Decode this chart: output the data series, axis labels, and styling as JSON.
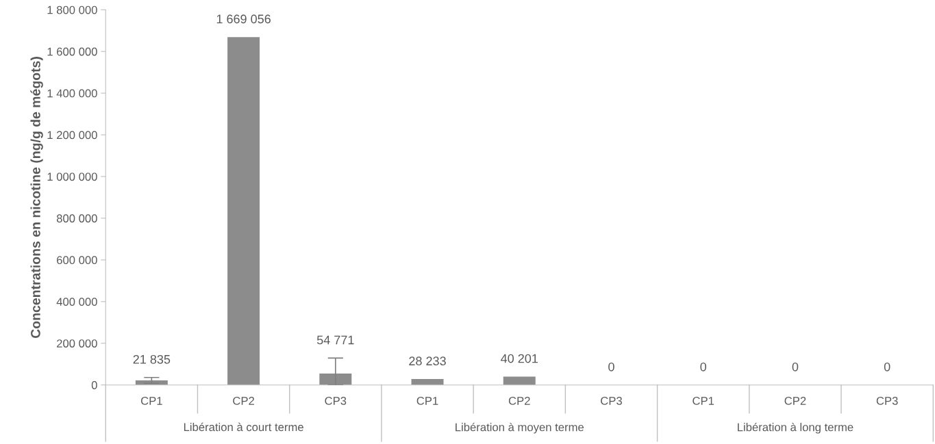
{
  "chart_data": {
    "type": "bar",
    "ylabel": "Concentrations en nicotine (ng/g de mégots)",
    "categories": [
      "CP1",
      "CP2",
      "CP3",
      "CP1",
      "CP2",
      "CP3",
      "CP1",
      "CP2",
      "CP3"
    ],
    "values": [
      21835,
      1669056,
      54771,
      28233,
      40201,
      0,
      0,
      0,
      0
    ],
    "errors": [
      [
        8000,
        36000
      ],
      null,
      [
        0,
        129000
      ],
      null,
      null,
      null,
      null,
      null,
      null
    ],
    "color": "#8c8c8c",
    "value_labels": [
      "21 835",
      "1 669 056",
      "54 771",
      "28 233",
      "40 201",
      "0",
      "0",
      "0",
      "0"
    ],
    "ylim": [
      0,
      1800000
    ],
    "yticks": [
      {
        "value": 0,
        "label": "0"
      },
      {
        "value": 200000,
        "label": "200 000"
      },
      {
        "value": 400000,
        "label": "400 000"
      },
      {
        "value": 600000,
        "label": "600 000"
      },
      {
        "value": 800000,
        "label": "800 000"
      },
      {
        "value": 1000000,
        "label": "1 000 000"
      },
      {
        "value": 1200000,
        "label": "1 200 000"
      },
      {
        "value": 1400000,
        "label": "1 400 000"
      },
      {
        "value": 1600000,
        "label": "1 600 000"
      },
      {
        "value": 1800000,
        "label": "1 800 000"
      }
    ],
    "annotations": [
      "Libération à court terme",
      "Libération à moyen terme",
      "Libération à long terme"
    ],
    "grid": false,
    "legend": false
  }
}
